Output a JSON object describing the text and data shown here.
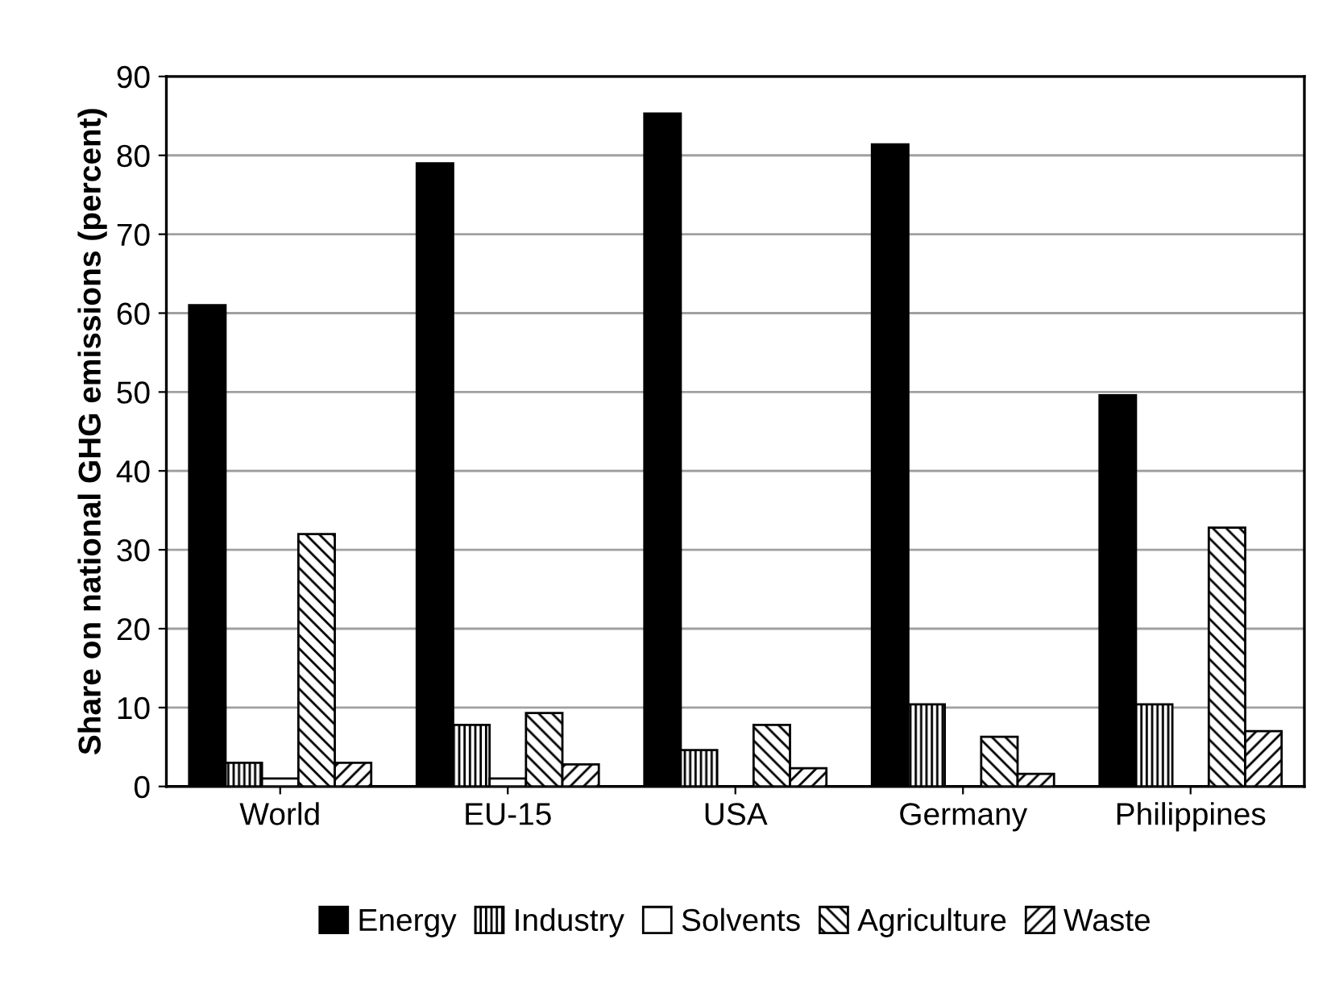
{
  "chart_data": {
    "type": "bar",
    "ylabel": "Share on national GHG emissions (percent)",
    "categories": [
      "World",
      "EU-15",
      "USA",
      "Germany",
      "Philippines"
    ],
    "series": [
      {
        "name": "Energy",
        "color": "#000000",
        "values": [
          61,
          79,
          85.3,
          81.4,
          49.6
        ]
      },
      {
        "name": "Industry",
        "color": "#000000",
        "values": [
          3,
          7.8,
          4.6,
          10.4,
          10.4
        ]
      },
      {
        "name": "Solvents",
        "color": "#ffffff",
        "values": [
          1,
          1,
          null,
          null,
          null
        ]
      },
      {
        "name": "Agriculture",
        "color": "#000000",
        "values": [
          32,
          9.3,
          7.8,
          6.3,
          32.8
        ]
      },
      {
        "name": "Waste",
        "color": "#000000",
        "values": [
          3,
          2.8,
          2.3,
          1.6,
          7
        ]
      }
    ],
    "ylim": [
      0,
      90
    ],
    "yticks": [
      0,
      10,
      20,
      30,
      40,
      50,
      60,
      70,
      80,
      90
    ],
    "grid": "y",
    "legend": "bottom"
  }
}
